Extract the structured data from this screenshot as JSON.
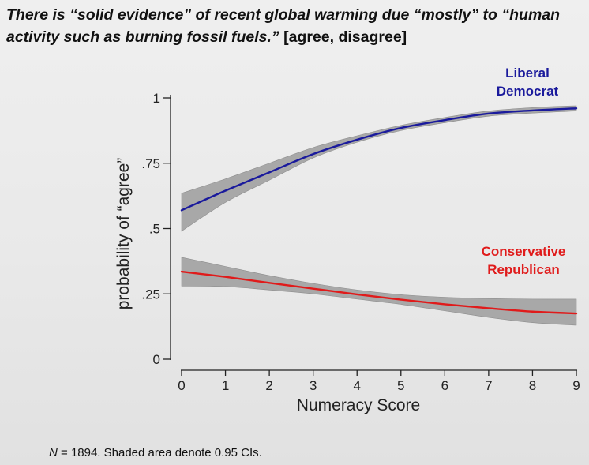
{
  "title": {
    "question": "There is “solid evidence” of recent global warming due “mostly” to “human activity such as burning fossil fuels.”",
    "options": "[agree, disagree]"
  },
  "footnote": {
    "n_symbol": "N",
    "n_text": " = 1894.  Shaded area denote 0.95 CIs."
  },
  "chart_data": {
    "type": "line",
    "xlabel": "Numeracy Score",
    "ylabel": "probability of “agree”",
    "xlim": [
      0,
      9
    ],
    "ylim": [
      0,
      1
    ],
    "x_ticks": [
      0,
      1,
      2,
      3,
      4,
      5,
      6,
      7,
      8,
      9
    ],
    "x_tick_labels": [
      "0",
      "1",
      "2",
      "3",
      "4",
      "5",
      "6",
      "7",
      "8",
      "9"
    ],
    "y_ticks": [
      0,
      0.25,
      0.5,
      0.75,
      1
    ],
    "y_tick_labels": [
      "0",
      ".25",
      ".5",
      ".75",
      "1"
    ],
    "grid": false,
    "x": [
      0,
      1,
      2,
      3,
      4,
      5,
      6,
      7,
      8,
      9
    ],
    "series": [
      {
        "name": "Liberal Democrat",
        "label_lines": [
          "Liberal",
          "Democrat"
        ],
        "color": "#1a1a9c",
        "values": [
          0.57,
          0.645,
          0.715,
          0.785,
          0.84,
          0.885,
          0.915,
          0.94,
          0.952,
          0.96
        ],
        "ci_low": [
          0.49,
          0.6,
          0.685,
          0.77,
          0.83,
          0.875,
          0.905,
          0.93,
          0.942,
          0.95
        ],
        "ci_high": [
          0.635,
          0.69,
          0.75,
          0.81,
          0.855,
          0.895,
          0.925,
          0.95,
          0.963,
          0.97
        ]
      },
      {
        "name": "Conservative Republican",
        "label_lines": [
          "Conservative",
          "Republican"
        ],
        "color": "#e01b1b",
        "values": [
          0.335,
          0.315,
          0.292,
          0.27,
          0.248,
          0.228,
          0.21,
          0.195,
          0.182,
          0.175
        ],
        "ci_low": [
          0.28,
          0.278,
          0.265,
          0.25,
          0.23,
          0.21,
          0.185,
          0.16,
          0.14,
          0.13
        ],
        "ci_high": [
          0.39,
          0.355,
          0.32,
          0.29,
          0.265,
          0.247,
          0.237,
          0.232,
          0.23,
          0.23
        ]
      }
    ],
    "ci_color": "#a8a8a8"
  }
}
